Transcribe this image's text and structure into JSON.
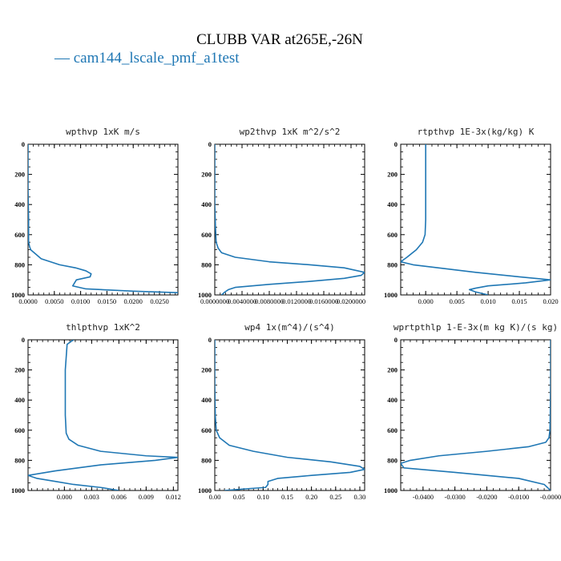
{
  "figure": {
    "title": "CLUBB VAR at265E,-26N",
    "legend_label": "— cam144_lscale_pmf_a1test",
    "line_color": "#1f77b4"
  },
  "chart_data": [
    {
      "type": "line",
      "title": "wpthvp   1xK m/s",
      "xlim": [
        0.0,
        0.0285
      ],
      "ylim": [
        1000,
        0
      ],
      "xticks": [
        0.0,
        0.005,
        0.01,
        0.015,
        0.02,
        0.025
      ],
      "xtick_labels": [
        "0.0000",
        "0.0050",
        "0.0100",
        "0.0150",
        "0.0200",
        "0.0250"
      ],
      "yticks": [
        0,
        200,
        400,
        600,
        800,
        1000
      ],
      "ytick_labels": [
        "0",
        "200",
        "400",
        "600",
        "800",
        "1000"
      ],
      "series": [
        {
          "x": [
            0.0,
            0.0,
            0.0001,
            0.0001,
            0.0003,
            0.0005,
            0.0015,
            0.0025,
            0.006,
            0.009,
            0.011,
            0.012,
            0.0118,
            0.0105,
            0.0092,
            0.0085,
            0.011,
            0.02,
            0.0285
          ],
          "y": [
            0,
            300,
            500,
            650,
            680,
            700,
            730,
            760,
            800,
            820,
            840,
            860,
            880,
            890,
            900,
            940,
            960,
            975,
            985
          ]
        }
      ]
    },
    {
      "type": "line",
      "title": "wp2thvp   1xK m^2/s^2",
      "xlim": [
        0.0,
        0.022
      ],
      "ylim": [
        1000,
        0
      ],
      "xticks": [
        0.0,
        0.004,
        0.008,
        0.012,
        0.016,
        0.02
      ],
      "xtick_labels": [
        "0.0000000",
        "0.0040000",
        "0.0080000",
        "0.0120000",
        "0.0160000",
        "0.0200000"
      ],
      "yticks": [
        0,
        200,
        400,
        600,
        800,
        1000
      ],
      "ytick_labels": [
        "0",
        "200",
        "400",
        "600",
        "800",
        "1000"
      ],
      "series": [
        {
          "x": [
            0.0,
            0.0,
            0.0001,
            0.0002,
            0.0005,
            0.001,
            0.003,
            0.008,
            0.014,
            0.019,
            0.022,
            0.0215,
            0.019,
            0.014,
            0.008,
            0.003,
            0.002,
            0.0015,
            0.001
          ],
          "y": [
            0,
            400,
            550,
            650,
            690,
            720,
            750,
            780,
            800,
            820,
            850,
            870,
            890,
            910,
            930,
            950,
            965,
            980,
            1000
          ]
        }
      ]
    },
    {
      "type": "line",
      "title": "rtpthvp   1E-3x(kg/kg) K",
      "xlim": [
        -0.004,
        0.02
      ],
      "ylim": [
        1000,
        0
      ],
      "xticks": [
        0.0,
        0.005,
        0.01,
        0.015,
        0.02
      ],
      "xtick_labels": [
        "0.000",
        "0.005",
        "0.010",
        "0.015",
        "0.020"
      ],
      "yticks": [
        0,
        200,
        400,
        600,
        800,
        1000
      ],
      "ytick_labels": [
        "0",
        "200",
        "400",
        "600",
        "800",
        "1000"
      ],
      "series": [
        {
          "x": [
            0.0,
            0.0,
            -0.0001,
            -0.0005,
            -0.0015,
            -0.003,
            -0.004,
            -0.002,
            0.002,
            0.008,
            0.015,
            0.02,
            0.016,
            0.01,
            0.008,
            0.007,
            0.008,
            0.01
          ],
          "y": [
            0,
            500,
            600,
            650,
            700,
            750,
            780,
            800,
            820,
            850,
            880,
            900,
            920,
            940,
            955,
            965,
            980,
            1000
          ]
        }
      ]
    },
    {
      "type": "line",
      "title": "thlpthvp   1xK^2",
      "xlim": [
        -0.004,
        0.0125
      ],
      "ylim": [
        1000,
        0
      ],
      "xticks": [
        0.0,
        0.003,
        0.006,
        0.009,
        0.012
      ],
      "xtick_labels": [
        "0.000",
        "0.003",
        "0.006",
        "0.009",
        "0.012"
      ],
      "yticks": [
        0,
        200,
        400,
        600,
        800,
        1000
      ],
      "ytick_labels": [
        "0",
        "200",
        "400",
        "600",
        "800",
        "1000"
      ],
      "series": [
        {
          "x": [
            0.001,
            0.0003,
            0.0001,
            0.0001,
            0.0002,
            0.0005,
            0.0015,
            0.004,
            0.009,
            0.0125,
            0.01,
            0.004,
            -0.001,
            -0.004,
            -0.003,
            -0.001,
            0.001,
            0.004,
            0.006
          ],
          "y": [
            0,
            30,
            200,
            500,
            620,
            660,
            700,
            740,
            770,
            780,
            800,
            830,
            870,
            900,
            920,
            940,
            960,
            980,
            1000
          ]
        }
      ]
    },
    {
      "type": "line",
      "title": "wp4   1x(m^4)/(s^4)",
      "xlim": [
        0.0,
        0.31
      ],
      "ylim": [
        1000,
        0
      ],
      "xticks": [
        0.0,
        0.05,
        0.1,
        0.15,
        0.2,
        0.25,
        0.3
      ],
      "xtick_labels": [
        "0.00",
        "0.05",
        "0.10",
        "0.15",
        "0.20",
        "0.25",
        "0.30"
      ],
      "yticks": [
        0,
        200,
        400,
        600,
        800,
        1000
      ],
      "ytick_labels": [
        "0",
        "200",
        "400",
        "600",
        "800",
        "1000"
      ],
      "series": [
        {
          "x": [
            0.0,
            0.0,
            0.001,
            0.003,
            0.01,
            0.03,
            0.08,
            0.15,
            0.24,
            0.3,
            0.31,
            0.28,
            0.2,
            0.13,
            0.11,
            0.11,
            0.105,
            0.06,
            0.02
          ],
          "y": [
            0,
            300,
            500,
            600,
            650,
            700,
            740,
            780,
            810,
            840,
            860,
            880,
            900,
            920,
            940,
            960,
            980,
            990,
            1000
          ]
        }
      ]
    },
    {
      "type": "line",
      "title": "wprtpthlp   1-E-3x(m kg K)/(s kg)",
      "xlim": [
        -0.047,
        0.0
      ],
      "ylim": [
        1000,
        0
      ],
      "xticks": [
        -0.04,
        -0.03,
        -0.02,
        -0.01,
        0.0
      ],
      "xtick_labels": [
        "-0.0400",
        "-0.0300",
        "-0.0200",
        "-0.0100",
        "-0.0000"
      ],
      "yticks": [
        0,
        200,
        400,
        600,
        800,
        1000
      ],
      "ytick_labels": [
        "0",
        "200",
        "400",
        "600",
        "800",
        "1000"
      ],
      "series": [
        {
          "x": [
            0.0,
            0.0,
            -0.0001,
            -0.0002,
            -0.0005,
            -0.0015,
            -0.007,
            -0.02,
            -0.035,
            -0.044,
            -0.047,
            -0.046,
            -0.03,
            -0.01,
            -0.002,
            0.0
          ],
          "y": [
            0,
            300,
            500,
            600,
            650,
            680,
            710,
            740,
            770,
            800,
            820,
            850,
            880,
            920,
            960,
            1000
          ]
        }
      ]
    }
  ]
}
